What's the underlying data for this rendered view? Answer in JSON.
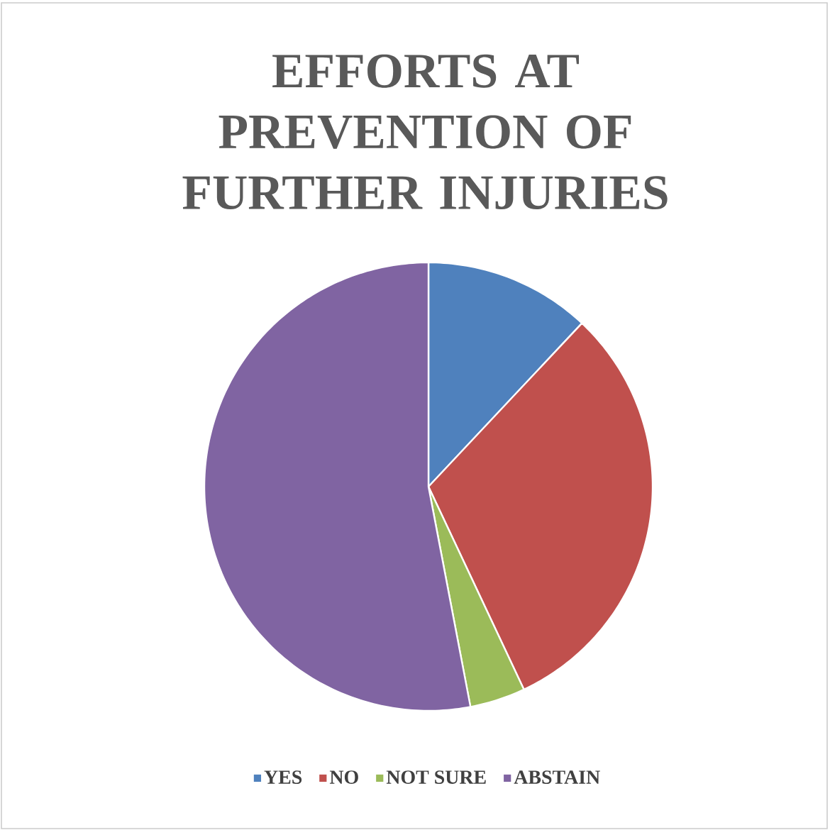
{
  "chart_data": {
    "type": "pie",
    "title": "EFFORTS AT PREVENTION OF FURTHER INJURIES",
    "categories": [
      "YES",
      "NO",
      "NOT SURE",
      "ABSTAIN"
    ],
    "values": [
      12,
      31,
      4,
      53
    ],
    "colors": [
      "#4f81bd",
      "#c0504d",
      "#9bbb59",
      "#8064a2"
    ],
    "legend": "bottom"
  }
}
